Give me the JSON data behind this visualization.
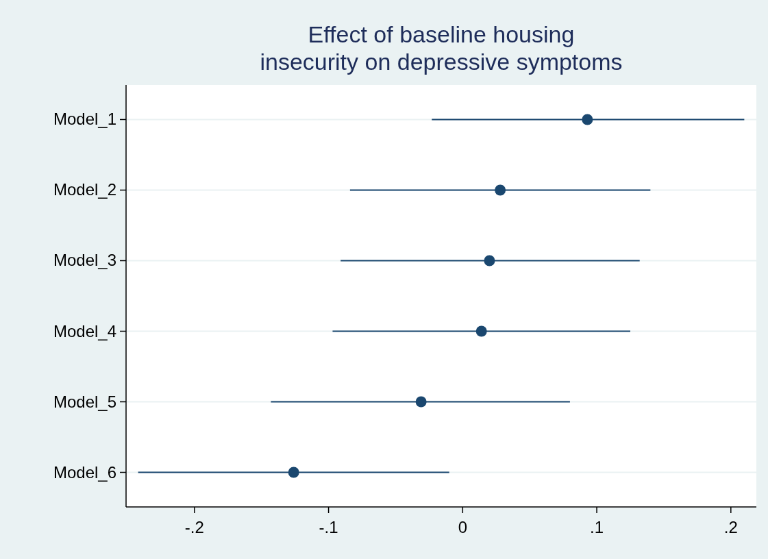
{
  "chart_data": {
    "type": "scatter",
    "orientation": "horizontal",
    "title": "Effect of baseline housing\ninsecurity on depressive symptoms",
    "categories": [
      "Model_1",
      "Model_2",
      "Model_3",
      "Model_4",
      "Model_5",
      "Model_6"
    ],
    "values": [
      0.093,
      0.028,
      0.02,
      0.014,
      -0.031,
      -0.126
    ],
    "errors": [
      [
        -0.023,
        0.21
      ],
      [
        -0.084,
        0.14
      ],
      [
        -0.091,
        0.132
      ],
      [
        -0.097,
        0.125
      ],
      [
        -0.143,
        0.08
      ],
      [
        -0.242,
        -0.01
      ]
    ],
    "color": "#1a476f",
    "marker": "circle",
    "grid": "y",
    "xlim": [
      -0.251,
      0.219
    ],
    "xticks": [
      {
        "value": -0.2,
        "label": "-.2"
      },
      {
        "value": -0.1,
        "label": "-.1"
      },
      0,
      {
        "value": 0.1,
        "label": ".1"
      },
      {
        "value": 0.2,
        "label": ".2"
      }
    ]
  }
}
